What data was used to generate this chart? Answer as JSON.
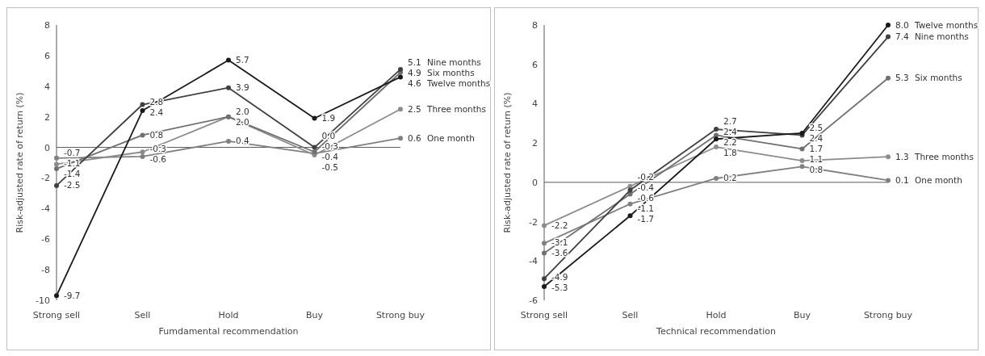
{
  "chart_data": [
    {
      "type": "line",
      "xlabel": "Fumdamental recommendation",
      "ylabel": "Risk-adjusted rate of return (%)",
      "categories": [
        "Strong sell",
        "Sell",
        "Hold",
        "Buy",
        "Strong buy"
      ],
      "ylim": [
        -10,
        8
      ],
      "yticks": [
        -10,
        -8,
        -6,
        -4,
        -2,
        0,
        2,
        4,
        6,
        8
      ],
      "marker": "circle",
      "legend": false,
      "series": [
        {
          "name": "One month",
          "color": "#808080",
          "values": [
            -0.7,
            -0.6,
            0.4,
            -0.4,
            0.6
          ],
          "value_labels": [
            "-0.7",
            "-0.6",
            "0.4",
            "-0.4",
            "0.6"
          ]
        },
        {
          "name": "Three months",
          "color": "#8c8c8c",
          "values": [
            -1.1,
            -0.3,
            2.0,
            -0.5,
            2.5
          ],
          "value_labels": [
            "-1.1",
            "-0.3",
            "2.0",
            "-0.5",
            "2.5"
          ]
        },
        {
          "name": "Six months",
          "color": "#707070",
          "values": [
            -1.4,
            0.8,
            2.0,
            -0.3,
            4.9
          ],
          "value_labels": [
            "-1.4",
            "0.8",
            "2.0",
            "-0.3",
            "4.9"
          ]
        },
        {
          "name": "Nine months",
          "color": "#404040",
          "values": [
            -2.5,
            2.8,
            3.9,
            0.0,
            5.1
          ],
          "value_labels": [
            "-2.5",
            "2.8",
            "3.9",
            "0.0",
            "5.1"
          ]
        },
        {
          "name": "Twelve months",
          "color": "#1a1a1a",
          "values": [
            -9.7,
            2.4,
            5.7,
            1.9,
            4.6
          ],
          "value_labels": [
            "-9.7",
            "2.4",
            "5.7",
            "1.9",
            "4.6"
          ]
        }
      ]
    },
    {
      "type": "line",
      "xlabel": "Technical recommendation",
      "ylabel": "Risk-adjusted rate of return (%)",
      "categories": [
        "Strong sell",
        "Sell",
        "Hold",
        "Buy",
        "Strong buy"
      ],
      "ylim": [
        -6,
        8
      ],
      "yticks": [
        -6,
        -4,
        -2,
        0,
        2,
        4,
        6,
        8
      ],
      "marker": "circle",
      "legend": false,
      "series": [
        {
          "name": "One month",
          "color": "#808080",
          "values": [
            -3.1,
            -1.1,
            0.2,
            0.8,
            0.1
          ],
          "value_labels": [
            "-3.1",
            "-1.1",
            "0.2",
            "0.8",
            "0.1"
          ]
        },
        {
          "name": "Three months",
          "color": "#8c8c8c",
          "values": [
            -2.2,
            -0.2,
            1.8,
            1.1,
            1.3
          ],
          "value_labels": [
            "-2.2",
            "-0.2",
            "1.8",
            "1.1",
            "1.3"
          ]
        },
        {
          "name": "Six months",
          "color": "#707070",
          "values": [
            -3.6,
            -0.6,
            2.4,
            1.7,
            5.3
          ],
          "value_labels": [
            "-3.6",
            "-0.6",
            "2.4",
            "1.7",
            "5.3"
          ]
        },
        {
          "name": "Nine months",
          "color": "#404040",
          "values": [
            -4.9,
            -0.4,
            2.7,
            2.4,
            7.4
          ],
          "value_labels": [
            "-4.9",
            "-0.4",
            "2.7",
            "2.4",
            "7.4"
          ]
        },
        {
          "name": "Twelve months",
          "color": "#1a1a1a",
          "values": [
            -5.3,
            -1.7,
            2.2,
            2.5,
            8.0
          ],
          "value_labels": [
            "-5.3",
            "-1.7",
            "2.2",
            "2.5",
            "8.0"
          ]
        }
      ]
    }
  ]
}
